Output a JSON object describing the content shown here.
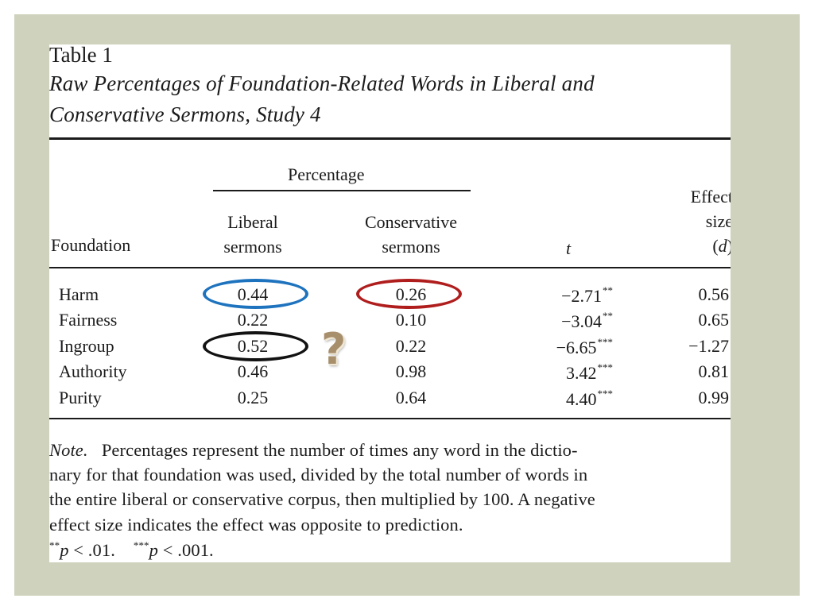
{
  "table": {
    "label": "Table 1",
    "title_line_1": "Raw Percentages of Foundation-Related Words in Liberal and",
    "title_line_2": "Conservative Sermons, Study 4"
  },
  "headers": {
    "percentage": "Percentage",
    "liberal_line_1": "Liberal",
    "liberal_line_2": "sermons",
    "conservative_line_1": "Conservative",
    "conservative_line_2": "sermons",
    "foundation": "Foundation",
    "t": "t",
    "effect_line_1": "Effect",
    "effect_line_2": "size",
    "effect_line_3_open": "(",
    "effect_line_3_d": "d",
    "effect_line_3_close": ")"
  },
  "rows": [
    {
      "foundation": "Harm",
      "liberal": "0.44",
      "conservative": "0.26",
      "t": "−2.71",
      "t_sig": "**",
      "d": "0.56"
    },
    {
      "foundation": "Fairness",
      "liberal": "0.22",
      "conservative": "0.10",
      "t": "−3.04",
      "t_sig": "**",
      "d": "0.65"
    },
    {
      "foundation": "Ingroup",
      "liberal": "0.52",
      "conservative": "0.22",
      "t": "−6.65",
      "t_sig": "***",
      "d": "−1.27"
    },
    {
      "foundation": "Authority",
      "liberal": "0.46",
      "conservative": "0.98",
      "t": "3.42",
      "t_sig": "***",
      "d": "0.81"
    },
    {
      "foundation": "Purity",
      "liberal": "0.25",
      "conservative": "0.64",
      "t": "4.40",
      "t_sig": "***",
      "d": "0.99"
    }
  ],
  "note": {
    "label": "Note.",
    "line_1_text": "Percentages represent the number of times any word in the dictio-",
    "line_2": "nary for that foundation was used, divided by the total number of words in",
    "line_3": "the entire liberal or conservative corpus, then multiplied by 100. A negative",
    "line_4": "effect size indicates the effect was opposite to prediction.",
    "sig_1_stars": "**",
    "sig_1_p": "p",
    "sig_1_text": " < .01.",
    "sig_2_stars": "***",
    "sig_2_p": "p",
    "sig_2_text": " < .001."
  },
  "annotations": {
    "question_mark": "?",
    "circle_colors": {
      "harm_liberal": "#1e73be",
      "harm_conservative": "#b01d1d",
      "ingroup_liberal": "#121212"
    }
  },
  "colors": {
    "frame_background": "#cfd3bd",
    "paper": "#ffffff",
    "text": "#1b1b1b",
    "question_mark": "#a88f6c"
  }
}
